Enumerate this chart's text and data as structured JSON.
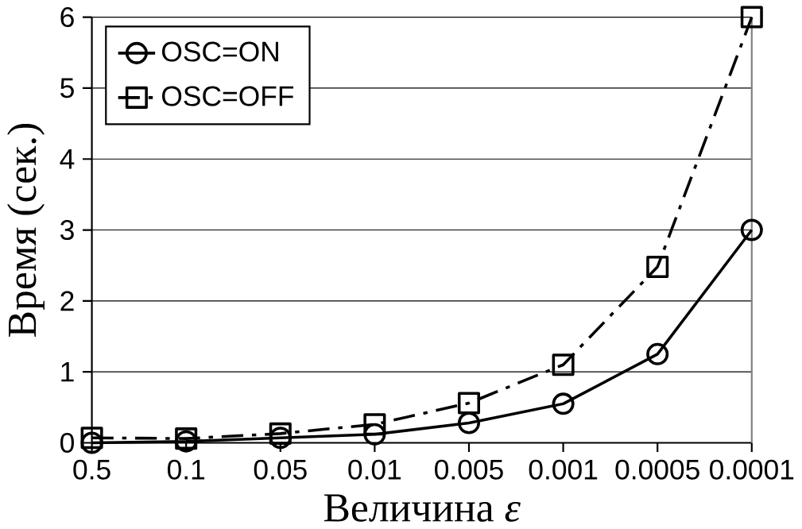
{
  "chart_data": {
    "type": "line",
    "xlabel": "Величина *ε*",
    "ylabel": "Время (сек.)",
    "categories": [
      "0.5",
      "0.1",
      "0.05",
      "0.01",
      "0.005",
      "0.001",
      "0.0005",
      "0.0001"
    ],
    "series": [
      {
        "name": "OSC=ON",
        "color": "#000000",
        "marker": "circle",
        "line_style": "solid",
        "values": [
          0.0,
          0.02,
          0.07,
          0.12,
          0.28,
          0.55,
          1.25,
          3.0
        ]
      },
      {
        "name": "OSC=OFF",
        "color": "#000000",
        "marker": "square",
        "line_style": "dashdot",
        "values": [
          0.07,
          0.06,
          0.13,
          0.26,
          0.56,
          1.1,
          2.48,
          6.0
        ]
      }
    ],
    "ylim": [
      0,
      6
    ],
    "yticks": [
      0,
      1,
      2,
      3,
      4,
      5,
      6
    ],
    "grid": "y",
    "legend": "top left"
  }
}
